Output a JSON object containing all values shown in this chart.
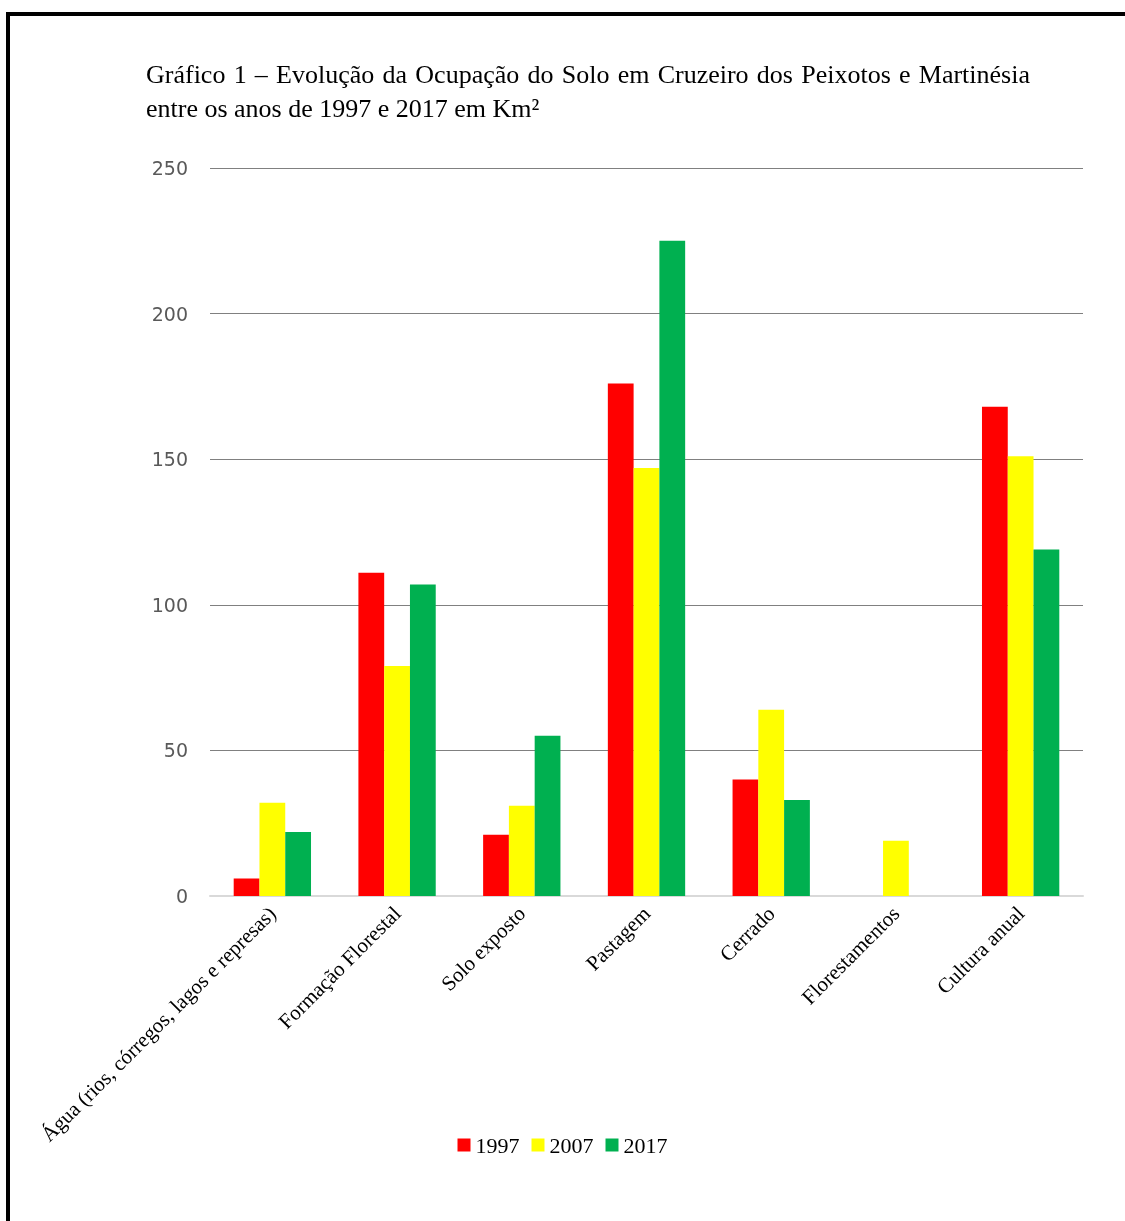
{
  "chart_data": {
    "type": "bar",
    "title": "Gráfico 1 – Evolução da Ocupação do Solo em Cruzeiro dos Peixotos e Martinésia entre os anos de 1997 e 2017 em Km²",
    "categories": [
      "Água (rios, córregos, lagos e represas)",
      "Formação Florestal",
      "Solo exposto",
      "Pastagem",
      "Cerrado",
      "Florestamentos",
      "Cultura anual"
    ],
    "series": [
      {
        "name": "1997",
        "color": "#ff0000",
        "values": [
          6,
          111,
          21,
          176,
          40,
          0,
          168
        ]
      },
      {
        "name": "2007",
        "color": "#ffff00",
        "values": [
          32,
          79,
          31,
          147,
          64,
          19,
          151
        ]
      },
      {
        "name": "2017",
        "color": "#00b050",
        "values": [
          22,
          107,
          55,
          225,
          33,
          0,
          119
        ]
      }
    ],
    "ylim": [
      0,
      250
    ],
    "yticks": [
      0,
      50,
      100,
      150,
      200,
      250
    ],
    "grid": "y",
    "legend": "bottom"
  }
}
